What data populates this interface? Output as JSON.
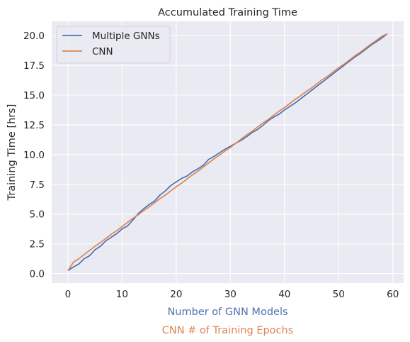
{
  "chart_data": {
    "type": "line",
    "title": "Accumulated Training Time",
    "ylabel": "Training Time [hrs]",
    "xlabel": "Number of GNN Models",
    "xlabel_color": "#4c72b0",
    "xlabel_secondary": "CNN # of Training Epochs",
    "xlabel_secondary_color": "#dd8452",
    "xlim": [
      -3,
      62
    ],
    "ylim": [
      -0.8,
      21.2
    ],
    "xticks": [
      0,
      10,
      20,
      30,
      40,
      50,
      60
    ],
    "yticks": [
      0.0,
      2.5,
      5.0,
      7.5,
      10.0,
      12.5,
      15.0,
      17.5,
      20.0
    ],
    "xtick_labels": [
      "0",
      "10",
      "20",
      "30",
      "40",
      "50",
      "60"
    ],
    "ytick_labels": [
      "0.0",
      "2.5",
      "5.0",
      "7.5",
      "10.0",
      "12.5",
      "15.0",
      "17.5",
      "20.0"
    ],
    "grid": true,
    "background": "#eaeaf2",
    "legend_position": "top-left",
    "x": [
      0,
      1,
      2,
      3,
      4,
      5,
      6,
      7,
      8,
      9,
      10,
      11,
      12,
      13,
      14,
      15,
      16,
      17,
      18,
      19,
      20,
      21,
      22,
      23,
      24,
      25,
      26,
      27,
      28,
      29,
      30,
      31,
      32,
      33,
      34,
      35,
      36,
      37,
      38,
      39,
      40,
      41,
      42,
      43,
      44,
      45,
      46,
      47,
      48,
      49,
      50,
      51,
      52,
      53,
      54,
      55,
      56,
      57,
      58,
      59
    ],
    "series": [
      {
        "name": "Multiple GNNs",
        "color": "#4c72b0",
        "values": [
          0.25,
          0.55,
          0.8,
          1.25,
          1.5,
          2.0,
          2.3,
          2.75,
          3.05,
          3.35,
          3.75,
          4.0,
          4.5,
          5.05,
          5.45,
          5.8,
          6.1,
          6.6,
          6.95,
          7.4,
          7.7,
          8.0,
          8.2,
          8.55,
          8.8,
          9.1,
          9.6,
          9.85,
          10.15,
          10.45,
          10.7,
          10.95,
          11.2,
          11.5,
          11.85,
          12.1,
          12.45,
          12.85,
          13.15,
          13.4,
          13.75,
          14.05,
          14.35,
          14.7,
          15.05,
          15.4,
          15.75,
          16.1,
          16.45,
          16.8,
          17.15,
          17.5,
          17.85,
          18.2,
          18.5,
          18.85,
          19.2,
          19.5,
          19.8,
          20.15
        ]
      },
      {
        "name": "CNN",
        "color": "#dd8452",
        "values": [
          0.25,
          0.95,
          1.25,
          1.6,
          1.95,
          2.3,
          2.6,
          2.95,
          3.3,
          3.6,
          3.95,
          4.3,
          4.65,
          4.95,
          5.3,
          5.6,
          5.95,
          6.3,
          6.6,
          6.95,
          7.3,
          7.6,
          7.95,
          8.3,
          8.6,
          8.95,
          9.3,
          9.65,
          9.95,
          10.3,
          10.6,
          10.95,
          11.3,
          11.65,
          11.95,
          12.3,
          12.65,
          12.95,
          13.3,
          13.65,
          13.95,
          14.3,
          14.65,
          14.95,
          15.3,
          15.6,
          15.95,
          16.3,
          16.6,
          16.95,
          17.3,
          17.6,
          17.95,
          18.3,
          18.6,
          18.95,
          19.3,
          19.6,
          19.95,
          20.15
        ]
      }
    ]
  }
}
